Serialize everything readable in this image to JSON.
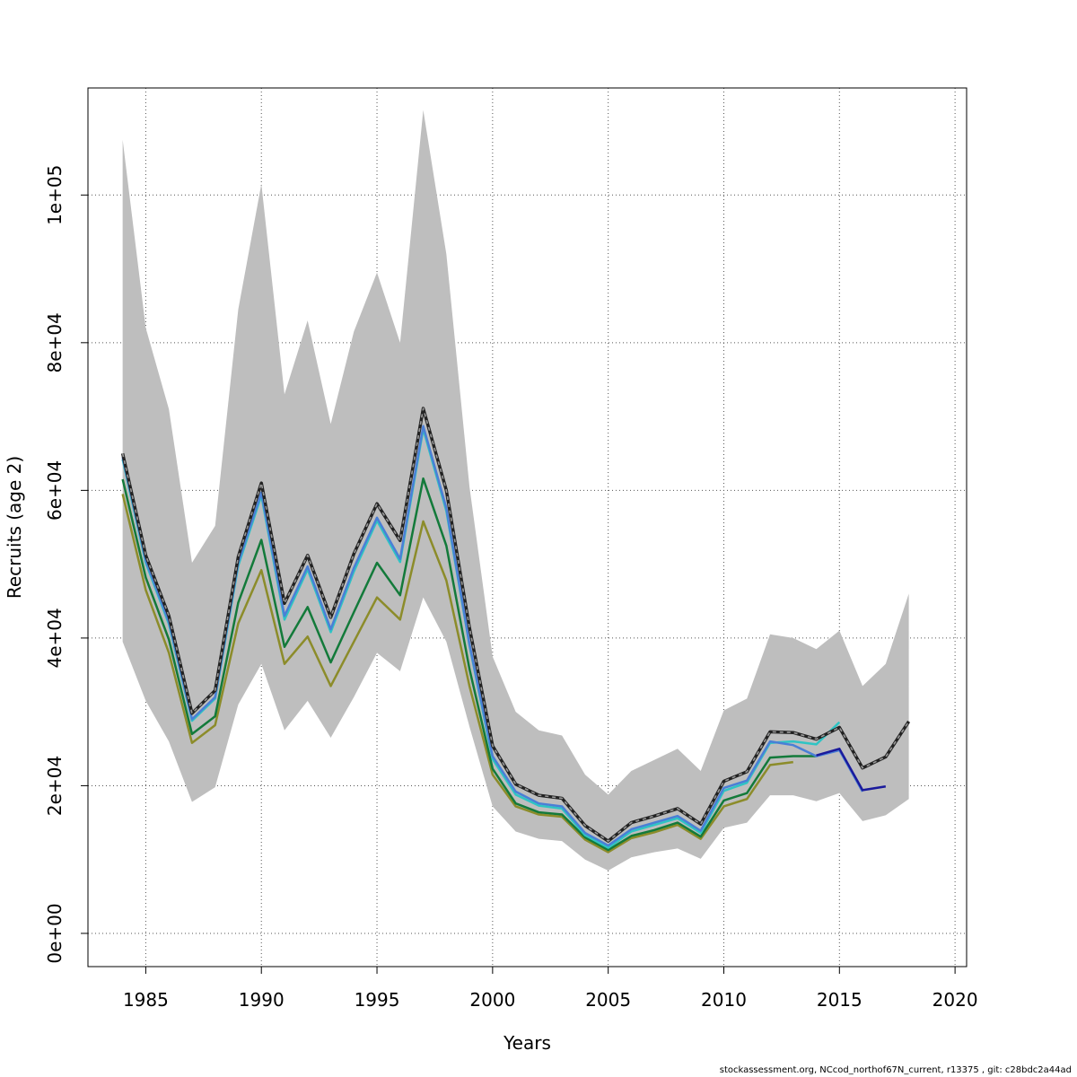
{
  "chart_data": {
    "type": "line",
    "xlabel": "Years",
    "ylabel": "Recruits (age 2)",
    "xlim": [
      1982.5,
      2020.5
    ],
    "ylim": [
      -4500,
      114500
    ],
    "x_ticks": [
      1985,
      1990,
      1995,
      2000,
      2005,
      2010,
      2015,
      2020
    ],
    "x_tick_labels": [
      "1985",
      "1990",
      "1995",
      "2000",
      "2005",
      "2010",
      "2015",
      "2020"
    ],
    "y_ticks": [
      0,
      20000,
      40000,
      60000,
      80000,
      100000
    ],
    "y_tick_labels": [
      "0e+00",
      "2e+04",
      "4e+04",
      "6e+04",
      "8e+04",
      "1e+05"
    ],
    "grid": true,
    "band": {
      "color": "#bebebe",
      "x": [
        1984,
        1985,
        1986,
        1987,
        1988,
        1989,
        1990,
        1991,
        1992,
        1993,
        1994,
        1995,
        1996,
        1997,
        1998,
        1999,
        2000,
        2001,
        2002,
        2003,
        2004,
        2005,
        2006,
        2007,
        2008,
        2009,
        2010,
        2011,
        2012,
        2013,
        2014,
        2015,
        2016,
        2017,
        2018
      ],
      "lower": [
        39500,
        31500,
        26000,
        17800,
        19800,
        31000,
        36500,
        27500,
        31500,
        26500,
        32000,
        38000,
        35500,
        45500,
        39500,
        28000,
        17200,
        13800,
        12800,
        12500,
        10000,
        8500,
        10300,
        11000,
        11500,
        10100,
        14300,
        15000,
        18700,
        18700,
        17900,
        19000,
        15200,
        16000,
        18200
      ],
      "upper": [
        107500,
        82000,
        71000,
        50200,
        55200,
        84500,
        101500,
        73000,
        83000,
        69000,
        81500,
        89500,
        80000,
        111500,
        92000,
        60500,
        37500,
        30000,
        27500,
        26800,
        21500,
        18800,
        22000,
        23500,
        25000,
        22000,
        30200,
        31800,
        40500,
        40000,
        38500,
        41000,
        33500,
        36500,
        46000
      ]
    },
    "series": [
      {
        "color": "#8c8c2a",
        "style": "solid",
        "x": [
          1984,
          1985,
          1986,
          1987,
          1988,
          1989,
          1990,
          1991,
          1992,
          1993,
          1994,
          1995,
          1996,
          1997,
          1998,
          1999,
          2000,
          2001,
          2002,
          2003,
          2004,
          2005,
          2006,
          2007,
          2008,
          2009,
          2010,
          2011,
          2012,
          2013
        ],
        "values": [
          59500,
          46500,
          38000,
          25800,
          28200,
          42000,
          49200,
          36500,
          40200,
          33500,
          39500,
          45500,
          42500,
          55800,
          47800,
          33500,
          21500,
          17200,
          16100,
          15800,
          12700,
          11000,
          12900,
          13700,
          14700,
          12800,
          17200,
          18200,
          22800,
          23200
        ]
      },
      {
        "color": "#137a3a",
        "style": "solid",
        "x": [
          1984,
          1985,
          1986,
          1987,
          1988,
          1989,
          1990,
          1991,
          1992,
          1993,
          1994,
          1995,
          1996,
          1997,
          1998,
          1999,
          2000,
          2001,
          2002,
          2003,
          2004,
          2005,
          2006,
          2007,
          2008,
          2009,
          2010,
          2011,
          2012,
          2013,
          2014
        ],
        "values": [
          61500,
          48200,
          39800,
          27000,
          29400,
          44800,
          53300,
          38800,
          44200,
          36700,
          43500,
          50200,
          45800,
          61600,
          52500,
          35800,
          22300,
          17600,
          16400,
          16100,
          13000,
          11300,
          13200,
          14000,
          15000,
          13100,
          18000,
          19000,
          23800,
          24000,
          24000
        ]
      },
      {
        "color": "#2ec4c4",
        "style": "solid",
        "x": [
          1984,
          1985,
          1986,
          1987,
          1988,
          1989,
          1990,
          1991,
          1992,
          1993,
          1994,
          1995,
          1996,
          1997,
          1998,
          1999,
          2000,
          2001,
          2002,
          2003,
          2004,
          2005,
          2006,
          2007,
          2008,
          2009,
          2010,
          2011,
          2012,
          2013,
          2014,
          2015
        ],
        "values": [
          64200,
          50200,
          41900,
          28800,
          31800,
          49800,
          59300,
          42500,
          49300,
          40800,
          49000,
          55900,
          50300,
          68300,
          57200,
          39000,
          23600,
          18800,
          17300,
          16900,
          13300,
          11600,
          13800,
          14700,
          15600,
          13600,
          19300,
          20400,
          25800,
          26000,
          25600,
          28600
        ]
      },
      {
        "color": "#4a7fd6",
        "style": "solid",
        "x": [
          1984,
          1985,
          1986,
          1987,
          1988,
          1989,
          1990,
          1991,
          1992,
          1993,
          1994,
          1995,
          1996,
          1997,
          1998,
          1999,
          2000,
          2001,
          2002,
          2003,
          2004,
          2005,
          2006,
          2007,
          2008,
          2009,
          2010,
          2011,
          2012,
          2013,
          2014,
          2015,
          2016
        ],
        "values": [
          64500,
          50500,
          42200,
          29000,
          32000,
          50200,
          59700,
          43000,
          49700,
          41200,
          49500,
          56300,
          50700,
          68700,
          57600,
          39200,
          24000,
          19200,
          17600,
          17200,
          13600,
          11900,
          14100,
          15000,
          15900,
          13900,
          19700,
          20700,
          26000,
          25500,
          24000,
          24800,
          19200
        ]
      },
      {
        "color": "#1a1a9c",
        "style": "solid",
        "x": [
          2014,
          2015,
          2016,
          2017
        ],
        "values": [
          24100,
          25000,
          19400,
          19900
        ]
      },
      {
        "color": "#222222",
        "style": "dashed",
        "x": [
          1984,
          1985,
          1986,
          1987,
          1988,
          1989,
          1990,
          1991,
          1992,
          1993,
          1994,
          1995,
          1996,
          1997,
          1998,
          1999,
          2000,
          2001,
          2002,
          2003,
          2004,
          2005,
          2006,
          2007,
          2008,
          2009,
          2010,
          2011,
          2012,
          2013,
          2014,
          2015,
          2016,
          2017,
          2018
        ],
        "values": [
          65000,
          51200,
          43000,
          29800,
          32900,
          51000,
          61000,
          44700,
          51200,
          42800,
          51400,
          58200,
          53200,
          71100,
          60000,
          41400,
          25400,
          20200,
          18700,
          18300,
          14600,
          12500,
          15000,
          15900,
          16900,
          14800,
          20600,
          21900,
          27300,
          27200,
          26300,
          27900,
          22400,
          23900,
          28700
        ]
      }
    ]
  },
  "footer": "stockassessment.org, NCcod_northof67N_current, r13375 , git: c28bdc2a44ad"
}
